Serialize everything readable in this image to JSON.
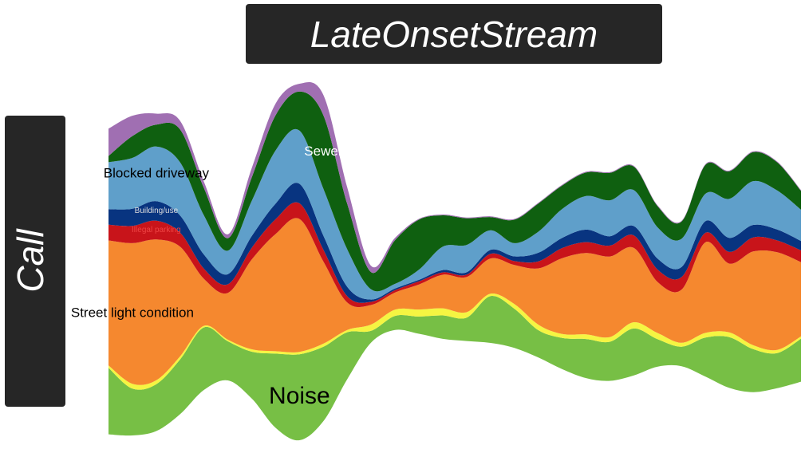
{
  "chart_data": {
    "type": "area",
    "subtype": "streamgraph",
    "title": "LateOnsetStream",
    "ylabel": "Call",
    "xlabel": "",
    "grid": false,
    "legend": "none",
    "x": [
      0,
      1,
      2,
      3,
      4,
      5,
      6,
      7,
      8,
      9,
      10,
      11,
      12,
      13,
      14,
      15,
      16,
      17,
      18,
      19,
      20,
      21,
      22,
      23,
      24,
      25,
      26,
      27,
      28,
      29
    ],
    "series": [
      {
        "name": "Noise",
        "color": "#77bf45",
        "label_size": "large",
        "label_color": "#000000",
        "values": [
          8.5,
          6.0,
          6.0,
          7.0,
          8.0,
          5.0,
          6.0,
          9.5,
          11.0,
          9.5,
          6.0,
          1.5,
          1.8,
          2.2,
          3.0,
          3.0,
          6.0,
          5.0,
          3.5,
          4.0,
          5.0,
          5.0,
          6.0,
          3.5,
          2.5,
          5.0,
          6.5,
          5.5,
          4.5,
          5.5
        ]
      },
      {
        "name": "",
        "color": "#f5f542",
        "values": [
          0.3,
          0.6,
          0.5,
          0.4,
          0.2,
          0.2,
          0.3,
          0.3,
          0.3,
          0.4,
          0.3,
          0.8,
          0.8,
          0.9,
          0.9,
          0.7,
          0.3,
          0.6,
          0.7,
          0.5,
          0.6,
          0.6,
          0.8,
          0.8,
          0.5,
          0.6,
          0.6,
          0.5,
          0.4,
          0.3
        ]
      },
      {
        "name": "Street light condition",
        "color": "#f5882f",
        "label_size": "medium",
        "label_color": "#000000",
        "values": [
          16.0,
          18.0,
          18.0,
          14.0,
          6.0,
          6.0,
          11.5,
          15.0,
          17.0,
          10.5,
          3.5,
          2.5,
          2.2,
          3.2,
          4.3,
          4.5,
          4.5,
          5.0,
          7.2,
          9.7,
          10.4,
          10.3,
          9.5,
          6.5,
          6.8,
          11.6,
          8.8,
          12.0,
          12.5,
          9.5
        ]
      },
      {
        "name": "Illegal parking",
        "color": "#c8141a",
        "label_size": "small",
        "label_color": "#ee4444",
        "values": [
          2.0,
          2.2,
          2.4,
          1.8,
          1.3,
          1.1,
          1.5,
          1.9,
          2.0,
          1.5,
          0.8,
          0.4,
          0.3,
          0.4,
          0.3,
          0.3,
          0.6,
          0.5,
          0.9,
          1.3,
          1.4,
          1.4,
          1.6,
          1.6,
          1.6,
          1.2,
          1.5,
          1.8,
          1.5,
          1.5
        ]
      },
      {
        "name": "Building/use",
        "color": "#083480",
        "label_size": "small",
        "label_color": "#dddddd",
        "values": [
          2.0,
          2.2,
          2.5,
          2.2,
          1.8,
          1.3,
          1.5,
          2.0,
          2.5,
          1.8,
          1.2,
          0.3,
          0.2,
          0.2,
          0.3,
          0.3,
          0.5,
          0.6,
          1.1,
          1.3,
          1.6,
          1.2,
          1.2,
          1.4,
          1.3,
          1.5,
          1.8,
          1.6,
          1.4,
          1.2
        ]
      },
      {
        "name": "Blocked driveway",
        "color": "#5f9fca",
        "label_size": "medium",
        "label_color": "#000000",
        "values": [
          6.0,
          6.5,
          7.0,
          6.8,
          5.0,
          3.0,
          4.5,
          6.8,
          6.8,
          6.0,
          4.8,
          1.3,
          0.6,
          1.3,
          3.0,
          3.5,
          2.5,
          1.7,
          2.7,
          3.7,
          4.3,
          4.6,
          4.6,
          4.0,
          3.6,
          3.5,
          5.0,
          5.6,
          5.0,
          4.0
        ]
      },
      {
        "name": "Sewer",
        "color": "#0f6010",
        "label_size": "medium",
        "label_color": "#ffffff",
        "values": [
          0.8,
          2.8,
          2.8,
          4.2,
          3.5,
          1.6,
          3.0,
          4.5,
          5.0,
          9.4,
          5.8,
          2.2,
          5.6,
          6.4,
          4.0,
          3.4,
          1.7,
          3.0,
          3.6,
          3.0,
          3.0,
          3.5,
          3.0,
          2.7,
          2.2,
          3.7,
          3.5,
          3.7,
          3.6,
          2.4
        ]
      },
      {
        "name": "",
        "color": "#a06fb2",
        "values": [
          3.5,
          2.6,
          1.4,
          1.1,
          0.8,
          0.5,
          1.2,
          1.5,
          1.0,
          2.6,
          2.1,
          0.8,
          0.3,
          0.1,
          0.1,
          0.1,
          0.1,
          0.1,
          0.1,
          0.1,
          0.1,
          0.1,
          0.1,
          0.1,
          0.1,
          0.1,
          0.1,
          0.1,
          0.1,
          0.1
        ]
      }
    ]
  }
}
